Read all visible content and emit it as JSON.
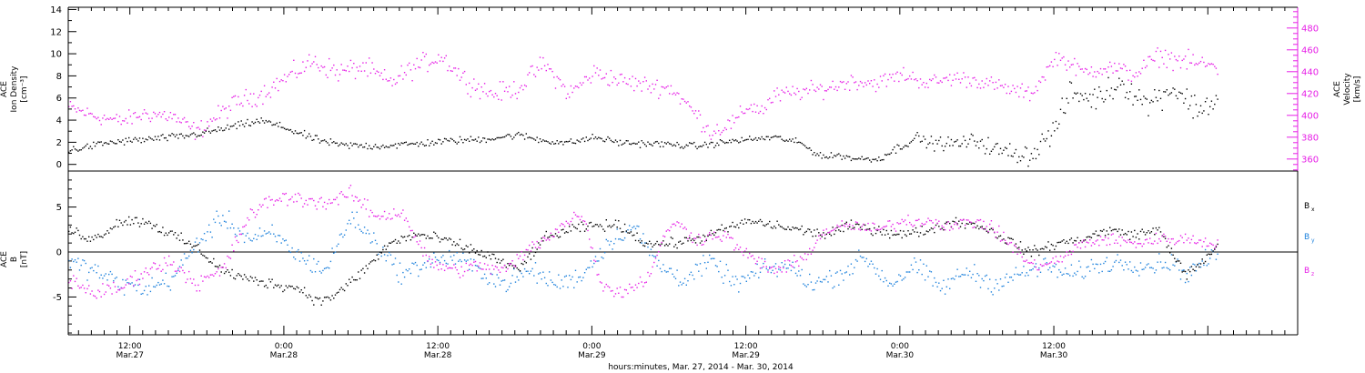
{
  "colors": {
    "axis": "#000000",
    "magenta": "#e61ee6",
    "blue": "#1e82dc",
    "black": "#000000"
  },
  "chart_data": [
    {
      "type": "scatter",
      "panel": "top",
      "ylabel_lines": [
        "ACE",
        "Ion Density",
        "[cm⁻³]"
      ],
      "y2label_lines": [
        "ACE",
        "Velocity",
        "[km/s]"
      ],
      "ylim": [
        -0.6,
        14.2
      ],
      "yticks": [
        0,
        2,
        4,
        6,
        8,
        10,
        12,
        14
      ],
      "y2lim": [
        349,
        499
      ],
      "y2ticks": [
        360,
        380,
        400,
        420,
        440,
        460,
        480
      ],
      "series": [
        {
          "axis": "left",
          "color": "#000000",
          "knots": [
            [
              0,
              1.3
            ],
            [
              3,
              2.0
            ],
            [
              6,
              2.3
            ],
            [
              9,
              2.6
            ],
            [
              11,
              3.0
            ],
            [
              13,
              3.5
            ],
            [
              15,
              4.0
            ],
            [
              17,
              3.3
            ],
            [
              19,
              2.4
            ],
            [
              21,
              1.8
            ],
            [
              24,
              1.7
            ],
            [
              27,
              1.9
            ],
            [
              30,
              2.2
            ],
            [
              32,
              2.3
            ],
            [
              35,
              2.7
            ],
            [
              37,
              2.2
            ],
            [
              39,
              2.0
            ],
            [
              41,
              2.5
            ],
            [
              43,
              2.0
            ],
            [
              46,
              1.9
            ],
            [
              49,
              1.7
            ],
            [
              52,
              2.2
            ],
            [
              55,
              2.5
            ],
            [
              57,
              2.0
            ],
            [
              58,
              1.2
            ],
            [
              59,
              0.7
            ],
            [
              60,
              0.9
            ],
            [
              61,
              0.6
            ],
            [
              63,
              0.5
            ],
            [
              65,
              1.8
            ],
            [
              66,
              2.5
            ],
            [
              67,
              2.0
            ],
            [
              69,
              1.9
            ],
            [
              71,
              2.2
            ],
            [
              72,
              1.4
            ],
            [
              73,
              1.2
            ],
            [
              75,
              0.9
            ],
            [
              77,
              3.5
            ],
            [
              78,
              6.5
            ],
            [
              80,
              6.0
            ],
            [
              82,
              7.5
            ],
            [
              84,
              5.5
            ],
            [
              86,
              7.0
            ],
            [
              88,
              5.0
            ],
            [
              89.6,
              6.0
            ]
          ],
          "spread": [
            [
              0,
              0.5
            ],
            [
              24,
              0.5
            ],
            [
              62,
              0.4
            ],
            [
              77,
              1.6
            ],
            [
              90,
              1.8
            ]
          ]
        },
        {
          "axis": "right",
          "color": "#e61ee6",
          "knots": [
            [
              0,
              408
            ],
            [
              2,
              400
            ],
            [
              4,
              395
            ],
            [
              6,
              402
            ],
            [
              8,
              400
            ],
            [
              10,
              385
            ],
            [
              11,
              395
            ],
            [
              13,
              412
            ],
            [
              15,
              420
            ],
            [
              17,
              435
            ],
            [
              19,
              450
            ],
            [
              21,
              440
            ],
            [
              23,
              445
            ],
            [
              25,
              430
            ],
            [
              27,
              445
            ],
            [
              29,
              455
            ],
            [
              31,
              432
            ],
            [
              33,
              420
            ],
            [
              35,
              425
            ],
            [
              37,
              448
            ],
            [
              39,
              420
            ],
            [
              41,
              440
            ],
            [
              43,
              432
            ],
            [
              45,
              428
            ],
            [
              47,
              425
            ],
            [
              49,
              400
            ],
            [
              50,
              385
            ],
            [
              52,
              395
            ],
            [
              53,
              410
            ],
            [
              54,
              405
            ],
            [
              55,
              418
            ],
            [
              57,
              422
            ],
            [
              59,
              425
            ],
            [
              61,
              432
            ],
            [
              63,
              430
            ],
            [
              65,
              438
            ],
            [
              67,
              430
            ],
            [
              69,
              435
            ],
            [
              71,
              432
            ],
            [
              73,
              425
            ],
            [
              75,
              420
            ],
            [
              77,
              455
            ],
            [
              79,
              440
            ],
            [
              81,
              445
            ],
            [
              83,
              438
            ],
            [
              85,
              455
            ],
            [
              87,
              450
            ],
            [
              89.6,
              445
            ]
          ],
          "spread": [
            [
              0,
              10
            ],
            [
              20,
              14
            ],
            [
              48,
              12
            ],
            [
              76,
              10
            ],
            [
              90,
              14
            ]
          ]
        }
      ]
    },
    {
      "type": "scatter",
      "panel": "bottom",
      "ylabel_lines": [
        "ACE",
        "B",
        "[nT]"
      ],
      "ylim": [
        -9.2,
        9.0
      ],
      "yticks": [
        -5,
        0,
        5
      ],
      "zero_line": true,
      "legend": [
        {
          "label": "B",
          "sub": "x",
          "color": "#000000"
        },
        {
          "label": "B",
          "sub": "y",
          "color": "#1e82dc"
        },
        {
          "label": "B",
          "sub": "z",
          "color": "#e61ee6"
        }
      ],
      "series": [
        {
          "name": "Bx",
          "color": "#000000",
          "knots": [
            [
              0,
              2.5
            ],
            [
              2,
              1.5
            ],
            [
              4,
              3.5
            ],
            [
              6,
              3.5
            ],
            [
              8,
              2.0
            ],
            [
              10,
              0.5
            ],
            [
              12,
              -2.0
            ],
            [
              14,
              -3.0
            ],
            [
              16,
              -3.5
            ],
            [
              18,
              -4.0
            ],
            [
              19.5,
              -5.5
            ],
            [
              21,
              -4.5
            ],
            [
              23,
              -2.0
            ],
            [
              25,
              1.0
            ],
            [
              27,
              2.0
            ],
            [
              29,
              1.5
            ],
            [
              31,
              0.5
            ],
            [
              33,
              -0.5
            ],
            [
              35,
              -2.0
            ],
            [
              37,
              1.5
            ],
            [
              39,
              2.5
            ],
            [
              41,
              3.0
            ],
            [
              43,
              3.0
            ],
            [
              45,
              1.0
            ],
            [
              47,
              1.0
            ],
            [
              49,
              1.5
            ],
            [
              51,
              2.5
            ],
            [
              53,
              3.5
            ],
            [
              55,
              3.0
            ],
            [
              57,
              2.5
            ],
            [
              59,
              2.0
            ],
            [
              61,
              3.0
            ],
            [
              63,
              2.5
            ],
            [
              65,
              2.0
            ],
            [
              67,
              2.5
            ],
            [
              69,
              3.5
            ],
            [
              71,
              3.0
            ],
            [
              73,
              1.5
            ],
            [
              75,
              0.0
            ],
            [
              77,
              1.0
            ],
            [
              79,
              1.5
            ],
            [
              81,
              2.5
            ],
            [
              83,
              2.0
            ],
            [
              85,
              2.5
            ],
            [
              87,
              -2.5
            ],
            [
              88.5,
              -1.0
            ],
            [
              89.6,
              1.0
            ]
          ],
          "spread": [
            [
              0,
              0.9
            ],
            [
              90,
              0.8
            ]
          ]
        },
        {
          "name": "By",
          "color": "#1e82dc",
          "knots": [
            [
              0,
              -1.0
            ],
            [
              2,
              -2.0
            ],
            [
              4,
              -3.5
            ],
            [
              6,
              -4.0
            ],
            [
              8,
              -3.0
            ],
            [
              10,
              1.0
            ],
            [
              12,
              4.0
            ],
            [
              14,
              1.5
            ],
            [
              16,
              2.0
            ],
            [
              18,
              -0.5
            ],
            [
              20,
              -2.0
            ],
            [
              22,
              4.0
            ],
            [
              24,
              1.0
            ],
            [
              26,
              -2.5
            ],
            [
              28,
              -1.0
            ],
            [
              30,
              -0.5
            ],
            [
              32,
              -2.0
            ],
            [
              34,
              -3.5
            ],
            [
              36,
              -2.0
            ],
            [
              38,
              -3.5
            ],
            [
              40,
              -2.5
            ],
            [
              42,
              1.0
            ],
            [
              44,
              3.0
            ],
            [
              46,
              -1.5
            ],
            [
              48,
              -3.0
            ],
            [
              50,
              -1.0
            ],
            [
              52,
              -3.5
            ],
            [
              54,
              -2.0
            ],
            [
              56,
              -1.5
            ],
            [
              58,
              -3.5
            ],
            [
              60,
              -2.5
            ],
            [
              62,
              -0.5
            ],
            [
              64,
              -3.5
            ],
            [
              66,
              -1.5
            ],
            [
              68,
              -4.0
            ],
            [
              70,
              -2.0
            ],
            [
              72,
              -3.5
            ],
            [
              74,
              -2.5
            ],
            [
              76,
              -1.5
            ],
            [
              78,
              -2.5
            ],
            [
              80,
              -1.5
            ],
            [
              82,
              -1.0
            ],
            [
              84,
              -1.5
            ],
            [
              86,
              -1.0
            ],
            [
              87,
              -2.5
            ],
            [
              88.5,
              -1.0
            ],
            [
              89.6,
              0.0
            ]
          ],
          "spread": [
            [
              0,
              1.6
            ],
            [
              90,
              1.5
            ]
          ]
        },
        {
          "name": "Bz",
          "color": "#e61ee6",
          "knots": [
            [
              0,
              -3.0
            ],
            [
              2,
              -4.5
            ],
            [
              4,
              -4.0
            ],
            [
              6,
              -2.0
            ],
            [
              8,
              -1.0
            ],
            [
              10,
              -3.5
            ],
            [
              12,
              -2.0
            ],
            [
              14,
              4.0
            ],
            [
              16,
              6.0
            ],
            [
              18,
              6.0
            ],
            [
              20,
              5.5
            ],
            [
              22,
              6.5
            ],
            [
              24,
              4.0
            ],
            [
              26,
              4.5
            ],
            [
              28,
              -1.0
            ],
            [
              30,
              -2.0
            ],
            [
              32,
              -1.5
            ],
            [
              34,
              -2.0
            ],
            [
              36,
              0.5
            ],
            [
              38,
              2.5
            ],
            [
              40,
              4.5
            ],
            [
              41.5,
              -3.5
            ],
            [
              43,
              -4.5
            ],
            [
              45,
              -3.0
            ],
            [
              47,
              3.5
            ],
            [
              49,
              1.5
            ],
            [
              51,
              2.0
            ],
            [
              53,
              -0.5
            ],
            [
              55,
              -2.0
            ],
            [
              57,
              -1.0
            ],
            [
              59,
              2.5
            ],
            [
              61,
              3.0
            ],
            [
              63,
              2.5
            ],
            [
              65,
              3.5
            ],
            [
              67,
              3.5
            ],
            [
              69,
              3.0
            ],
            [
              71,
              3.5
            ],
            [
              73,
              1.5
            ],
            [
              75,
              -1.5
            ],
            [
              77,
              -1.0
            ],
            [
              79,
              1.0
            ],
            [
              81,
              1.5
            ],
            [
              83,
              1.0
            ],
            [
              85,
              1.5
            ],
            [
              87,
              1.5
            ],
            [
              89.6,
              1.0
            ]
          ],
          "spread": [
            [
              0,
              1.3
            ],
            [
              90,
              1.0
            ]
          ]
        }
      ]
    }
  ],
  "x_axis": {
    "xlim": [
      7.2,
      103.0
    ],
    "ticks": [
      {
        "x": 12,
        "lines": [
          "12:00",
          "Mar.27"
        ]
      },
      {
        "x": 24,
        "lines": [
          "0:00",
          "Mar.28"
        ]
      },
      {
        "x": 36,
        "lines": [
          "12:00",
          "Mar.28"
        ]
      },
      {
        "x": 48,
        "lines": [
          "0:00",
          "Mar.29"
        ]
      },
      {
        "x": 60,
        "lines": [
          "12:00",
          "Mar.29"
        ]
      },
      {
        "x": 72,
        "lines": [
          "0:00",
          "Mar.30"
        ]
      },
      {
        "x": 84,
        "lines": [
          "12:00",
          "Mar.30"
        ]
      }
    ],
    "xlabel": "hours:minutes, Mar. 27, 2014 - Mar. 30, 2014",
    "data_end": 96.8
  }
}
